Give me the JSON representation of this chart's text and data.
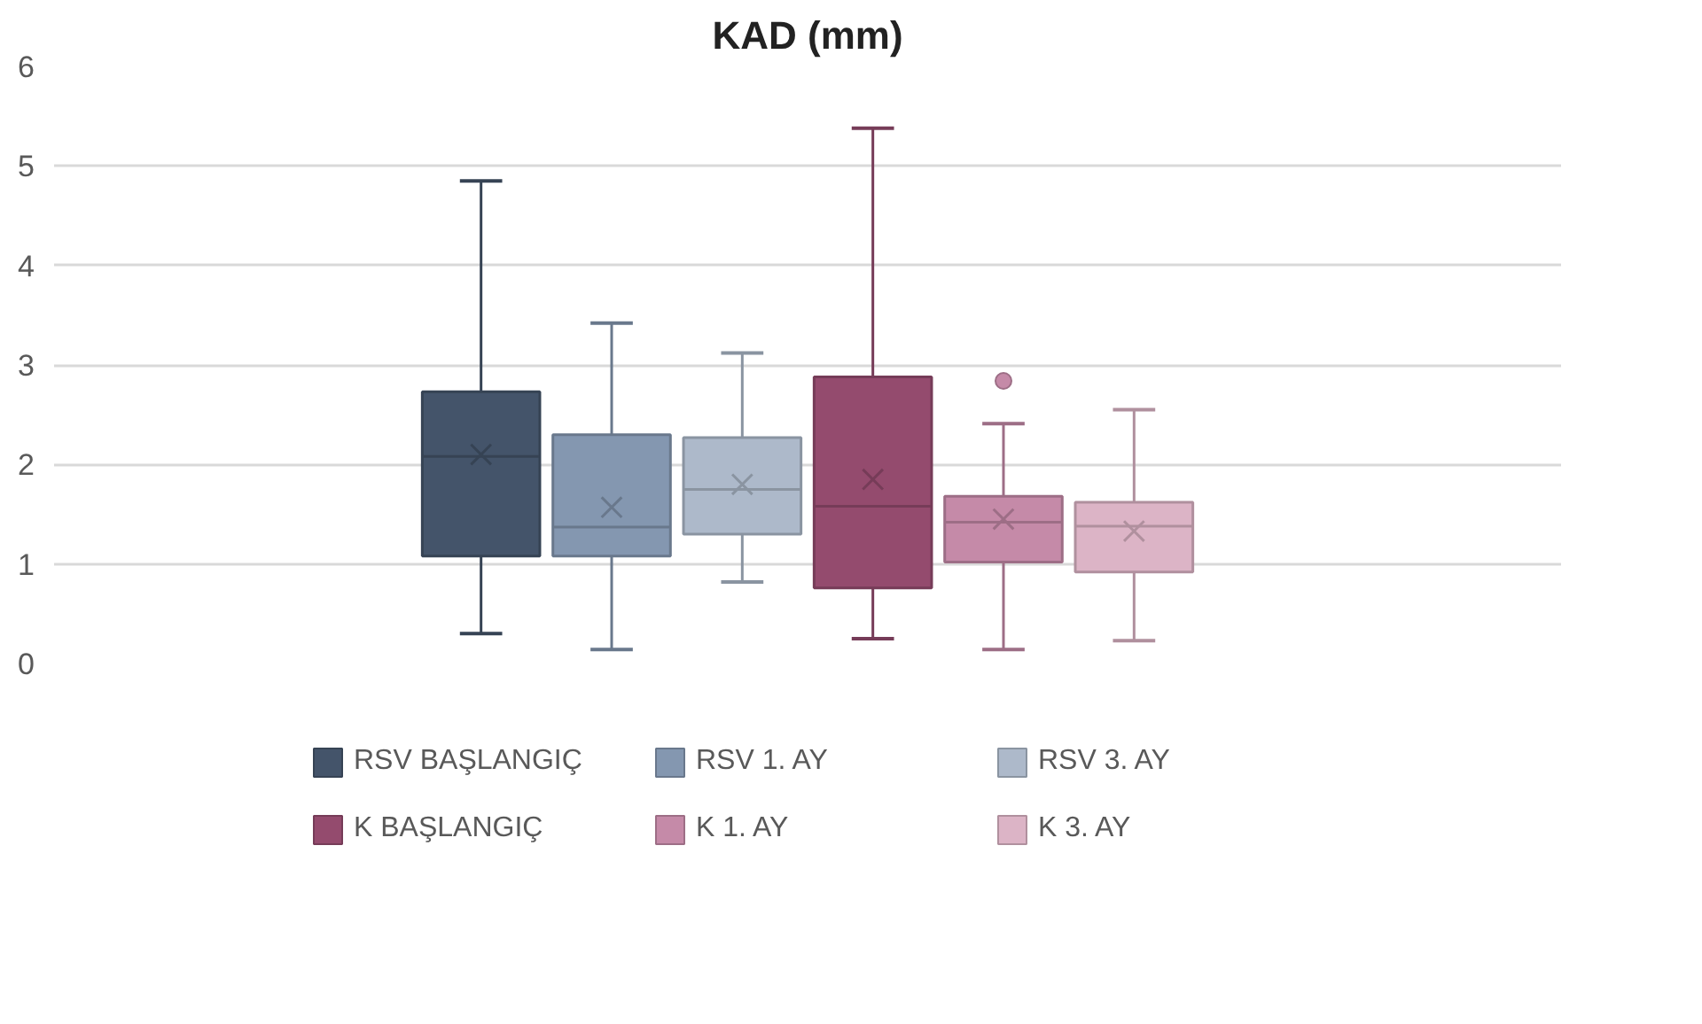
{
  "chart_data": {
    "type": "box",
    "title": "KAD (mm)",
    "categories": [
      null
    ],
    "series": [
      {
        "name": "RSV BAŞLANGIÇ",
        "color": "#44546a",
        "boxes": [
          {
            "low": 0.3,
            "q1": 1.08,
            "median": 2.08,
            "q3": 2.73,
            "high": 4.85,
            "mean": 2.1
          }
        ]
      },
      {
        "name": "RSV 1. AY",
        "color": "#8497b0",
        "boxes": [
          {
            "low": 0.14,
            "q1": 1.08,
            "median": 1.37,
            "q3": 2.3,
            "high": 3.42,
            "mean": 1.57
          }
        ]
      },
      {
        "name": "RSV 3. AY",
        "color": "#adb9ca",
        "boxes": [
          {
            "low": 0.82,
            "q1": 1.3,
            "median": 1.75,
            "q3": 2.27,
            "high": 3.12,
            "mean": 1.8
          }
        ]
      },
      {
        "name": "K BAŞLANGIÇ",
        "color": "#944b6e",
        "boxes": [
          {
            "low": 0.25,
            "q1": 0.76,
            "median": 1.58,
            "q3": 2.88,
            "high": 5.38,
            "mean": 1.85
          }
        ]
      },
      {
        "name": "K 1. AY",
        "color": "#c58aa8",
        "boxes": [
          {
            "low": 0.14,
            "q1": 1.02,
            "median": 1.42,
            "q3": 1.68,
            "high": 2.41,
            "mean": 1.45,
            "outliers": [
              2.84
            ]
          }
        ]
      },
      {
        "name": "K 3. AY",
        "color": "#dcb4c6",
        "boxes": [
          {
            "low": 0.23,
            "q1": 0.92,
            "median": 1.38,
            "q3": 1.62,
            "high": 2.55,
            "mean": 1.33
          }
        ]
      }
    ],
    "ylim": [
      0,
      6
    ],
    "yticks": [
      0,
      1,
      2,
      3,
      4,
      5,
      6
    ],
    "grid": "y",
    "legend": "bottom",
    "tick_labels": "y",
    "marker": "cross"
  }
}
